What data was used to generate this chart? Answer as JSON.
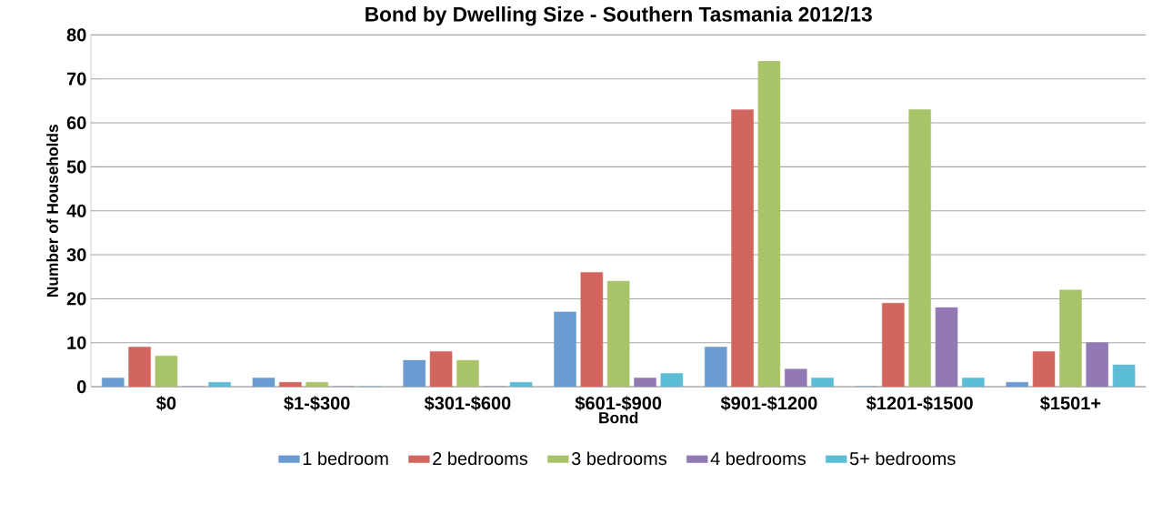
{
  "chart_data": {
    "type": "bar",
    "title": "Bond by Dwelling Size - Southern Tasmania 2012/13",
    "xlabel": "Bond",
    "ylabel": "Number of Households",
    "categories": [
      "$0",
      "$1-$300",
      "$301-$600",
      "$601-$900",
      "$901-$1200",
      "$1201-$1500",
      "$1501+"
    ],
    "series": [
      {
        "name": "1 bedroom",
        "color": "#6a9bd1",
        "values": [
          2,
          2,
          6,
          17,
          9,
          0,
          1
        ]
      },
      {
        "name": "2 bedrooms",
        "color": "#d2665f",
        "values": [
          9,
          1,
          8,
          26,
          63,
          19,
          8
        ]
      },
      {
        "name": "3 bedrooms",
        "color": "#a9c468",
        "values": [
          7,
          1,
          6,
          24,
          74,
          63,
          22
        ]
      },
      {
        "name": "4 bedrooms",
        "color": "#9279b4",
        "values": [
          0,
          0,
          0,
          2,
          4,
          18,
          10
        ]
      },
      {
        "name": "5+ bedrooms",
        "color": "#5bbdd6",
        "values": [
          1,
          0,
          1,
          3,
          2,
          2,
          5
        ]
      }
    ],
    "ylim": [
      0,
      80
    ],
    "yticks": [
      0,
      10,
      20,
      30,
      40,
      50,
      60,
      70,
      80
    ],
    "grid": "y",
    "legend": "bottom"
  }
}
